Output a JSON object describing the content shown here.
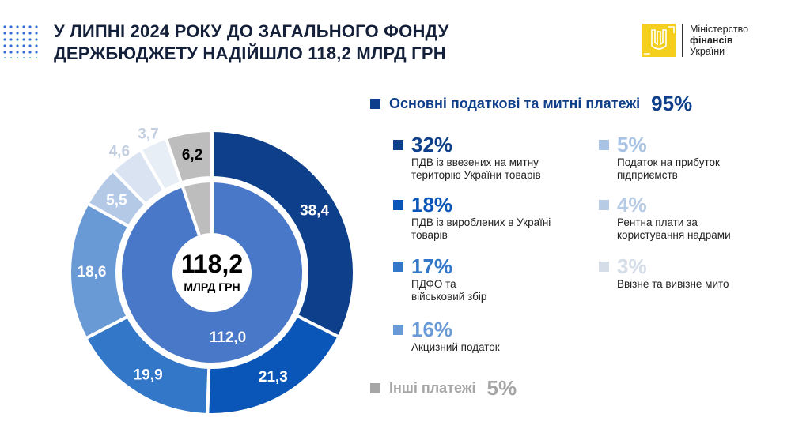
{
  "header": {
    "title_line1": "У ЛИПНІ 2024 РОКУ ДО ЗАГАЛЬНОГО ФОНДУ",
    "title_line2": "ДЕРЖБЮДЖЕТУ НАДІЙШЛО 118,2 МЛРД ГРН"
  },
  "logo": {
    "line1": "Міністерство",
    "line2": "фінансів",
    "line3": "України",
    "icon": "trident-icon"
  },
  "chart_data": {
    "type": "pie",
    "subtype": "nested-donut",
    "center_value": "118,2",
    "center_unit": "МЛРД ГРН",
    "outer": [
      {
        "value": 38.4,
        "label": "38,4",
        "color": "#0d3f8a"
      },
      {
        "value": 21.3,
        "label": "21,3",
        "color": "#0a55b8"
      },
      {
        "value": 19.9,
        "label": "19,9",
        "color": "#3277c8"
      },
      {
        "value": 18.6,
        "label": "18,6",
        "color": "#6a9ad6"
      },
      {
        "value": 5.5,
        "label": "5,5",
        "color": "#b4c9e6"
      },
      {
        "value": 4.6,
        "label": "4,6",
        "color": "#d9e3f1"
      },
      {
        "value": 3.7,
        "label": "3,7",
        "color": "#e8eef6"
      },
      {
        "value": 6.2,
        "label": "6,2",
        "color": "#bdbdbd"
      }
    ],
    "inner": [
      {
        "value": 112.0,
        "label": "112,0",
        "color": "#4a78c8"
      },
      {
        "value": 6.2,
        "label": "",
        "color": "#bdbdbd"
      }
    ]
  },
  "legend": {
    "main": {
      "label": "Основні податкові та митні платежі",
      "pct": "95%",
      "color": "#0d3f8a"
    },
    "items": [
      {
        "pct": "32%",
        "desc1": "ПДВ із ввезених на митну",
        "desc2": "територію України товарів",
        "color": "#0d3f8a"
      },
      {
        "pct": "18%",
        "desc1": "ПДВ із вироблених в Україні",
        "desc2": "товарів",
        "color": "#0a55b8"
      },
      {
        "pct": "17%",
        "desc1": "ПДФО та",
        "desc2": "військовий збір",
        "color": "#3277c8"
      },
      {
        "pct": "16%",
        "desc1": "Акцизний податок",
        "desc2": "",
        "color": "#6a9ad6"
      },
      {
        "pct": "5%",
        "desc1": "Податок на прибуток",
        "desc2": "підприємств",
        "color": "#a9c3e4"
      },
      {
        "pct": "4%",
        "desc1": "Рентна плати за",
        "desc2": "користування надрами",
        "color": "#b7cbe5"
      },
      {
        "pct": "3%",
        "desc1": "Ввізне та вивізне мито",
        "desc2": "",
        "color": "#d5dde8"
      }
    ],
    "other": {
      "label": "Інші платежі",
      "pct": "5%",
      "color": "#a6a6a6"
    }
  }
}
